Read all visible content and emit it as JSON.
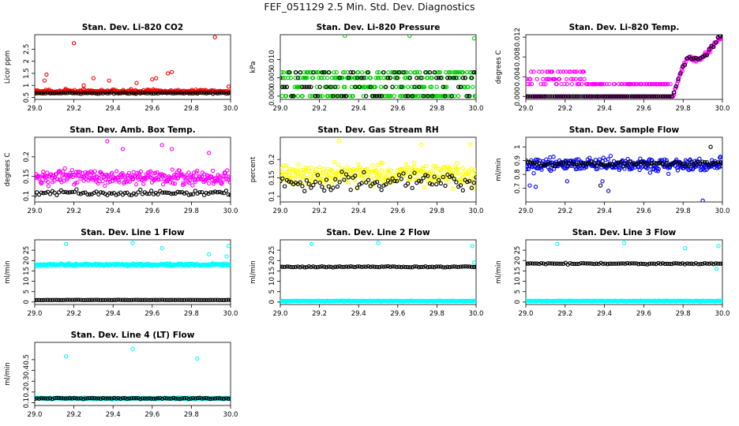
{
  "page": {
    "title": "FEF_051129  2.5 Min. Std. Dev. Diagnostics"
  },
  "colors": {
    "axis": "#000000",
    "black_series": "#000000"
  },
  "chart_data": [
    {
      "type": "scatter",
      "title": "Stan. Dev. Li-820 CO2",
      "ylabel": "Licor ppm",
      "xlabel": "",
      "xlim": [
        29.0,
        30.0
      ],
      "ylim": [
        0.42,
        3.1
      ],
      "xticks": [
        "29.0",
        "29.2",
        "29.4",
        "29.6",
        "29.8",
        "30.0"
      ],
      "yticks": [
        0.5,
        1.0,
        1.5,
        2.0,
        2.5
      ],
      "series": [
        {
          "name": "primary",
          "color": "#ff0000",
          "base": 0.75,
          "spread": 0.12,
          "mode": "noise",
          "outliers": [
            [
              29.05,
              1.2
            ],
            [
              29.06,
              1.45
            ],
            [
              29.2,
              2.75
            ],
            [
              29.25,
              1.0
            ],
            [
              29.3,
              1.3
            ],
            [
              29.38,
              1.2
            ],
            [
              29.52,
              1.1
            ],
            [
              29.6,
              1.25
            ],
            [
              29.62,
              1.3
            ],
            [
              29.68,
              1.5
            ],
            [
              29.7,
              1.55
            ],
            [
              29.92,
              3.0
            ],
            [
              29.99,
              0.95
            ]
          ]
        },
        {
          "name": "secondary",
          "color": "#000000",
          "base": 0.68,
          "spread": 0.04,
          "mode": "noise",
          "outliers": []
        }
      ]
    },
    {
      "type": "scatter",
      "title": "Stan. Dev. Li-820 Pressure",
      "ylabel": "kPa",
      "xlabel": "",
      "xlim": [
        29.0,
        30.0
      ],
      "ylim": [
        -0.0009,
        0.0168
      ],
      "xticks": [
        "29.0",
        "29.2",
        "29.4",
        "29.6",
        "29.8",
        "30.0"
      ],
      "yticks": [
        0.0,
        0.005,
        0.01
      ],
      "series": [
        {
          "name": "primary",
          "color": "#00cc00",
          "base": 0.0,
          "spread": 0.0,
          "mode": "levels",
          "levels": [
            0.0,
            0.0025,
            0.005,
            0.0065
          ],
          "outliers": [
            [
              29.33,
              0.0165
            ],
            [
              29.66,
              0.0165
            ],
            [
              29.99,
              0.0158
            ]
          ]
        },
        {
          "name": "secondary",
          "color": "#000000",
          "base": 0.0,
          "spread": 0.0,
          "mode": "levels",
          "levels": [
            0.0,
            0.0025,
            0.005,
            0.0065
          ],
          "outliers": []
        }
      ]
    },
    {
      "type": "scatter",
      "title": "Stan. Dev. Li-820 Temp.",
      "ylabel": "degrees C",
      "xlabel": "",
      "xlim": [
        29.0,
        30.0
      ],
      "ylim": [
        -0.0006,
        0.0125
      ],
      "xticks": [
        "29.0",
        "29.2",
        "29.4",
        "29.6",
        "29.8",
        "30.0"
      ],
      "yticks": [
        0.0,
        0.004,
        0.008,
        0.012
      ],
      "series": [
        {
          "name": "primary",
          "color": "#ff00ff",
          "base": 0.0,
          "spread": 0.0,
          "mode": "temp",
          "outliers": []
        },
        {
          "name": "secondary",
          "color": "#000000",
          "base": 0.0,
          "spread": 0.0,
          "mode": "temp-black",
          "outliers": []
        }
      ]
    },
    {
      "type": "scatter",
      "title": "Stan. Dev. Amb. Box Temp.",
      "ylabel": "degrees C",
      "xlabel": "",
      "xlim": [
        29.0,
        30.0
      ],
      "ylim": [
        0.085,
        0.25
      ],
      "xticks": [
        "29.0",
        "29.2",
        "29.4",
        "29.6",
        "29.8",
        "30.0"
      ],
      "yticks": [
        0.1,
        0.15,
        0.2
      ],
      "series": [
        {
          "name": "primary",
          "color": "#ff00ff",
          "base": 0.148,
          "spread": 0.03,
          "mode": "noise",
          "outliers": [
            [
              29.37,
              0.24
            ],
            [
              29.45,
              0.22
            ],
            [
              29.65,
              0.23
            ],
            [
              29.7,
              0.22
            ],
            [
              29.89,
              0.21
            ]
          ]
        },
        {
          "name": "secondary",
          "color": "#000000",
          "base": 0.108,
          "spread": 0.012,
          "mode": "noise",
          "outliers": []
        }
      ]
    },
    {
      "type": "scatter",
      "title": "Stan. Dev. Gas Stream RH",
      "ylabel": "percent",
      "xlabel": "",
      "xlim": [
        29.0,
        30.0
      ],
      "ylim": [
        0.085,
        0.26
      ],
      "xticks": [
        "29.0",
        "29.2",
        "29.4",
        "29.6",
        "29.8",
        "30.0"
      ],
      "yticks": [
        0.1,
        0.15,
        0.2
      ],
      "series": [
        {
          "name": "primary",
          "color": "#ffff00",
          "base": 0.16,
          "spread": 0.05,
          "mode": "noise",
          "outliers": [
            [
              29.3,
              0.25
            ],
            [
              29.72,
              0.24
            ],
            [
              29.97,
              0.24
            ]
          ]
        },
        {
          "name": "secondary",
          "color": "#000000",
          "base": 0.14,
          "spread": 0.04,
          "mode": "noise",
          "outliers": []
        }
      ]
    },
    {
      "type": "scatter",
      "title": "Stan. Dev. Sample Flow",
      "ylabel": "ml/min",
      "xlabel": "",
      "xlim": [
        29.0,
        30.0
      ],
      "ylim": [
        0.6,
        1.07
      ],
      "xticks": [
        "29.0",
        "29.2",
        "29.4",
        "29.6",
        "29.8",
        "30.0"
      ],
      "yticks": [
        0.7,
        0.8,
        0.9,
        1.0
      ],
      "series": [
        {
          "name": "primary",
          "color": "#0000ee",
          "base": 0.87,
          "spread": 0.08,
          "mode": "noise",
          "outliers": [
            [
              29.02,
              0.72
            ],
            [
              29.05,
              0.71
            ],
            [
              29.21,
              0.75
            ],
            [
              29.39,
              0.75
            ],
            [
              29.42,
              0.68
            ],
            [
              29.9,
              0.61
            ]
          ]
        },
        {
          "name": "secondary",
          "color": "#000000",
          "base": 0.88,
          "spread": 0.04,
          "mode": "noise",
          "outliers": [
            [
              29.38,
              0.72
            ],
            [
              29.94,
              1.0
            ]
          ]
        }
      ]
    },
    {
      "type": "scatter",
      "title": "Stan. Dev. Line 1 Flow",
      "ylabel": "ml/min",
      "xlabel": "",
      "xlim": [
        29.0,
        30.0
      ],
      "ylim": [
        -1.2,
        30.0
      ],
      "xticks": [
        "29.0",
        "29.2",
        "29.4",
        "29.6",
        "29.8",
        "30.0"
      ],
      "yticks": [
        0,
        5,
        10,
        15,
        20,
        25
      ],
      "series": [
        {
          "name": "primary",
          "color": "#00ffff",
          "base": 18.0,
          "spread": 0.9,
          "mode": "noise",
          "outliers": [
            [
              29.16,
              28.0
            ],
            [
              29.5,
              28.5
            ],
            [
              29.65,
              26.0
            ],
            [
              29.89,
              23.0
            ],
            [
              29.99,
              27.0
            ],
            [
              29.98,
              22.0
            ]
          ]
        },
        {
          "name": "secondary",
          "color": "#000000",
          "base": 1.0,
          "spread": 0.15,
          "mode": "noise",
          "outliers": []
        }
      ]
    },
    {
      "type": "scatter",
      "title": "Stan. Dev. Line 2 Flow",
      "ylabel": "ml/min",
      "xlabel": "",
      "xlim": [
        29.0,
        30.0
      ],
      "ylim": [
        -1.2,
        30.0
      ],
      "xticks": [
        "29.0",
        "29.2",
        "29.4",
        "29.6",
        "29.8",
        "30.0"
      ],
      "yticks": [
        0,
        5,
        10,
        15,
        20,
        25
      ],
      "series": [
        {
          "name": "primary",
          "color": "#00ffff",
          "base": 0.5,
          "spread": 0.25,
          "mode": "noise",
          "outliers": [
            [
              29.16,
              28.0
            ],
            [
              29.5,
              28.5
            ],
            [
              29.98,
              27.0
            ],
            [
              29.99,
              19.0
            ]
          ]
        },
        {
          "name": "secondary",
          "color": "#000000",
          "base": 17.0,
          "spread": 0.5,
          "mode": "noise",
          "outliers": []
        }
      ]
    },
    {
      "type": "scatter",
      "title": "Stan. Dev. Line 3 Flow",
      "ylabel": "ml/min",
      "xlabel": "",
      "xlim": [
        29.0,
        30.0
      ],
      "ylim": [
        -1.2,
        30.0
      ],
      "xticks": [
        "29.0",
        "29.2",
        "29.4",
        "29.6",
        "29.8",
        "30.0"
      ],
      "yticks": [
        0,
        5,
        10,
        15,
        20,
        25
      ],
      "series": [
        {
          "name": "primary",
          "color": "#00ffff",
          "base": 0.5,
          "spread": 0.25,
          "mode": "noise",
          "outliers": [
            [
              29.16,
              28.0
            ],
            [
              29.5,
              28.5
            ],
            [
              29.81,
              26.0
            ],
            [
              29.98,
              27.0
            ],
            [
              29.97,
              16.0
            ]
          ]
        },
        {
          "name": "secondary",
          "color": "#000000",
          "base": 18.5,
          "spread": 0.5,
          "mode": "noise",
          "outliers": []
        }
      ]
    },
    {
      "type": "scatter",
      "title": "Stan. Dev. Line 4 (LT) Flow",
      "ylabel": "ml/min",
      "xlabel": "",
      "xlim": [
        29.0,
        30.0
      ],
      "ylim": [
        0.075,
        0.66
      ],
      "xticks": [
        "29.0",
        "29.2",
        "29.4",
        "29.6",
        "29.8",
        "30.0"
      ],
      "yticks": [
        0.1,
        0.2,
        0.3,
        0.4,
        0.5
      ],
      "series": [
        {
          "name": "primary",
          "color": "#00ffff",
          "base": 0.14,
          "spread": 0.012,
          "mode": "noise",
          "outliers": [
            [
              29.16,
              0.53
            ],
            [
              29.5,
              0.6
            ],
            [
              29.83,
              0.51
            ]
          ]
        },
        {
          "name": "secondary",
          "color": "#000000",
          "base": 0.14,
          "spread": 0.01,
          "mode": "noise",
          "outliers": []
        }
      ]
    }
  ]
}
